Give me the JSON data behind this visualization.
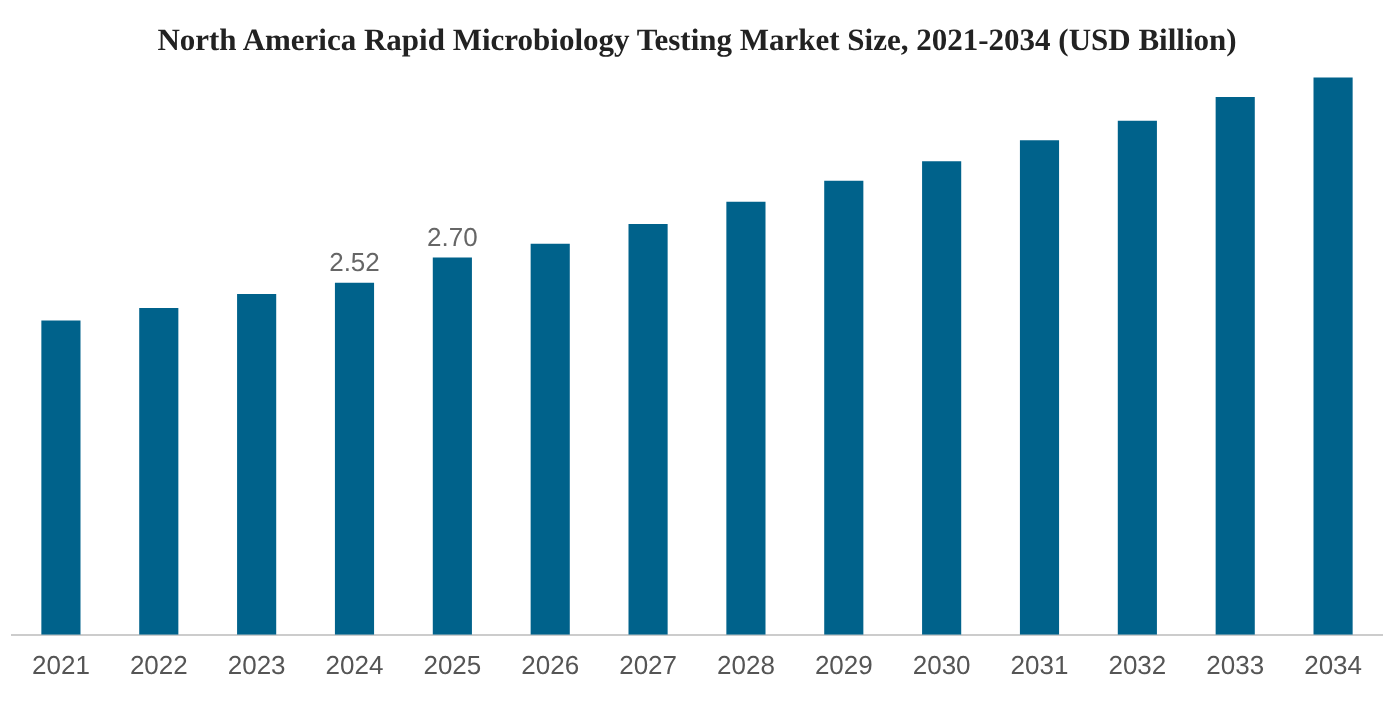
{
  "chart_data": {
    "type": "bar",
    "title": "North America Rapid Microbiology Testing Market Size, 2021-2034 (USD Billion)",
    "categories": [
      "2021",
      "2022",
      "2023",
      "2024",
      "2025",
      "2026",
      "2027",
      "2028",
      "2029",
      "2030",
      "2031",
      "2032",
      "2033",
      "2034"
    ],
    "values": [
      2.25,
      2.34,
      2.44,
      2.52,
      2.7,
      2.8,
      2.94,
      3.1,
      3.25,
      3.39,
      3.54,
      3.68,
      3.85,
      3.99
    ],
    "value_labels": [
      null,
      null,
      null,
      "2.52",
      "2.70",
      null,
      null,
      null,
      null,
      null,
      null,
      null,
      null,
      null
    ],
    "color": "#00628b",
    "grid": false,
    "legend": false
  }
}
